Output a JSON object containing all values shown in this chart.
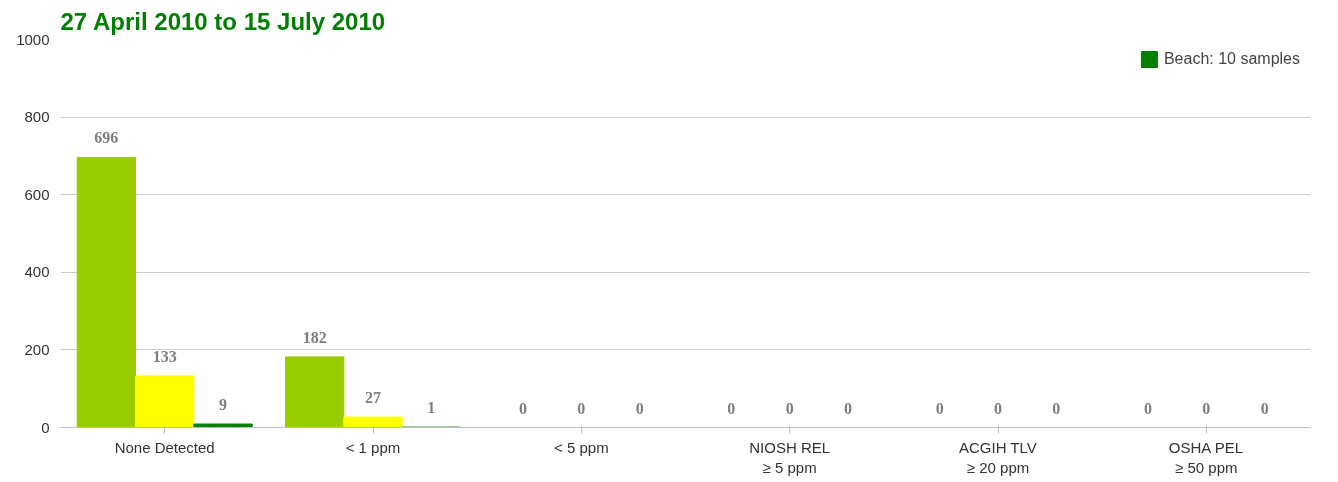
{
  "chart_data": {
    "type": "bar",
    "title": "27 April 2010 to 15 July 2010",
    "categories": [
      "None Detected",
      "< 1 ppm",
      "< 5 ppm",
      "NIOSH REL\n≥ 5 ppm",
      "ACGIH TLV\n≥ 20 ppm",
      "OSHA PEL\n≥ 50 ppm"
    ],
    "series": [
      {
        "color": "#99cc00",
        "values": [
          696,
          182,
          0,
          0,
          0,
          0
        ]
      },
      {
        "color": "#ffff00",
        "values": [
          133,
          27,
          0,
          0,
          0,
          0
        ]
      },
      {
        "name": "Beach: 10 samples",
        "color": "#008000",
        "values": [
          9,
          1,
          0,
          0,
          0,
          0
        ]
      }
    ],
    "ylim": [
      0,
      1000
    ],
    "yticks": [
      0,
      200,
      400,
      600,
      800,
      1000
    ],
    "grid": "y",
    "legend": "top right",
    "data_labels": true
  }
}
